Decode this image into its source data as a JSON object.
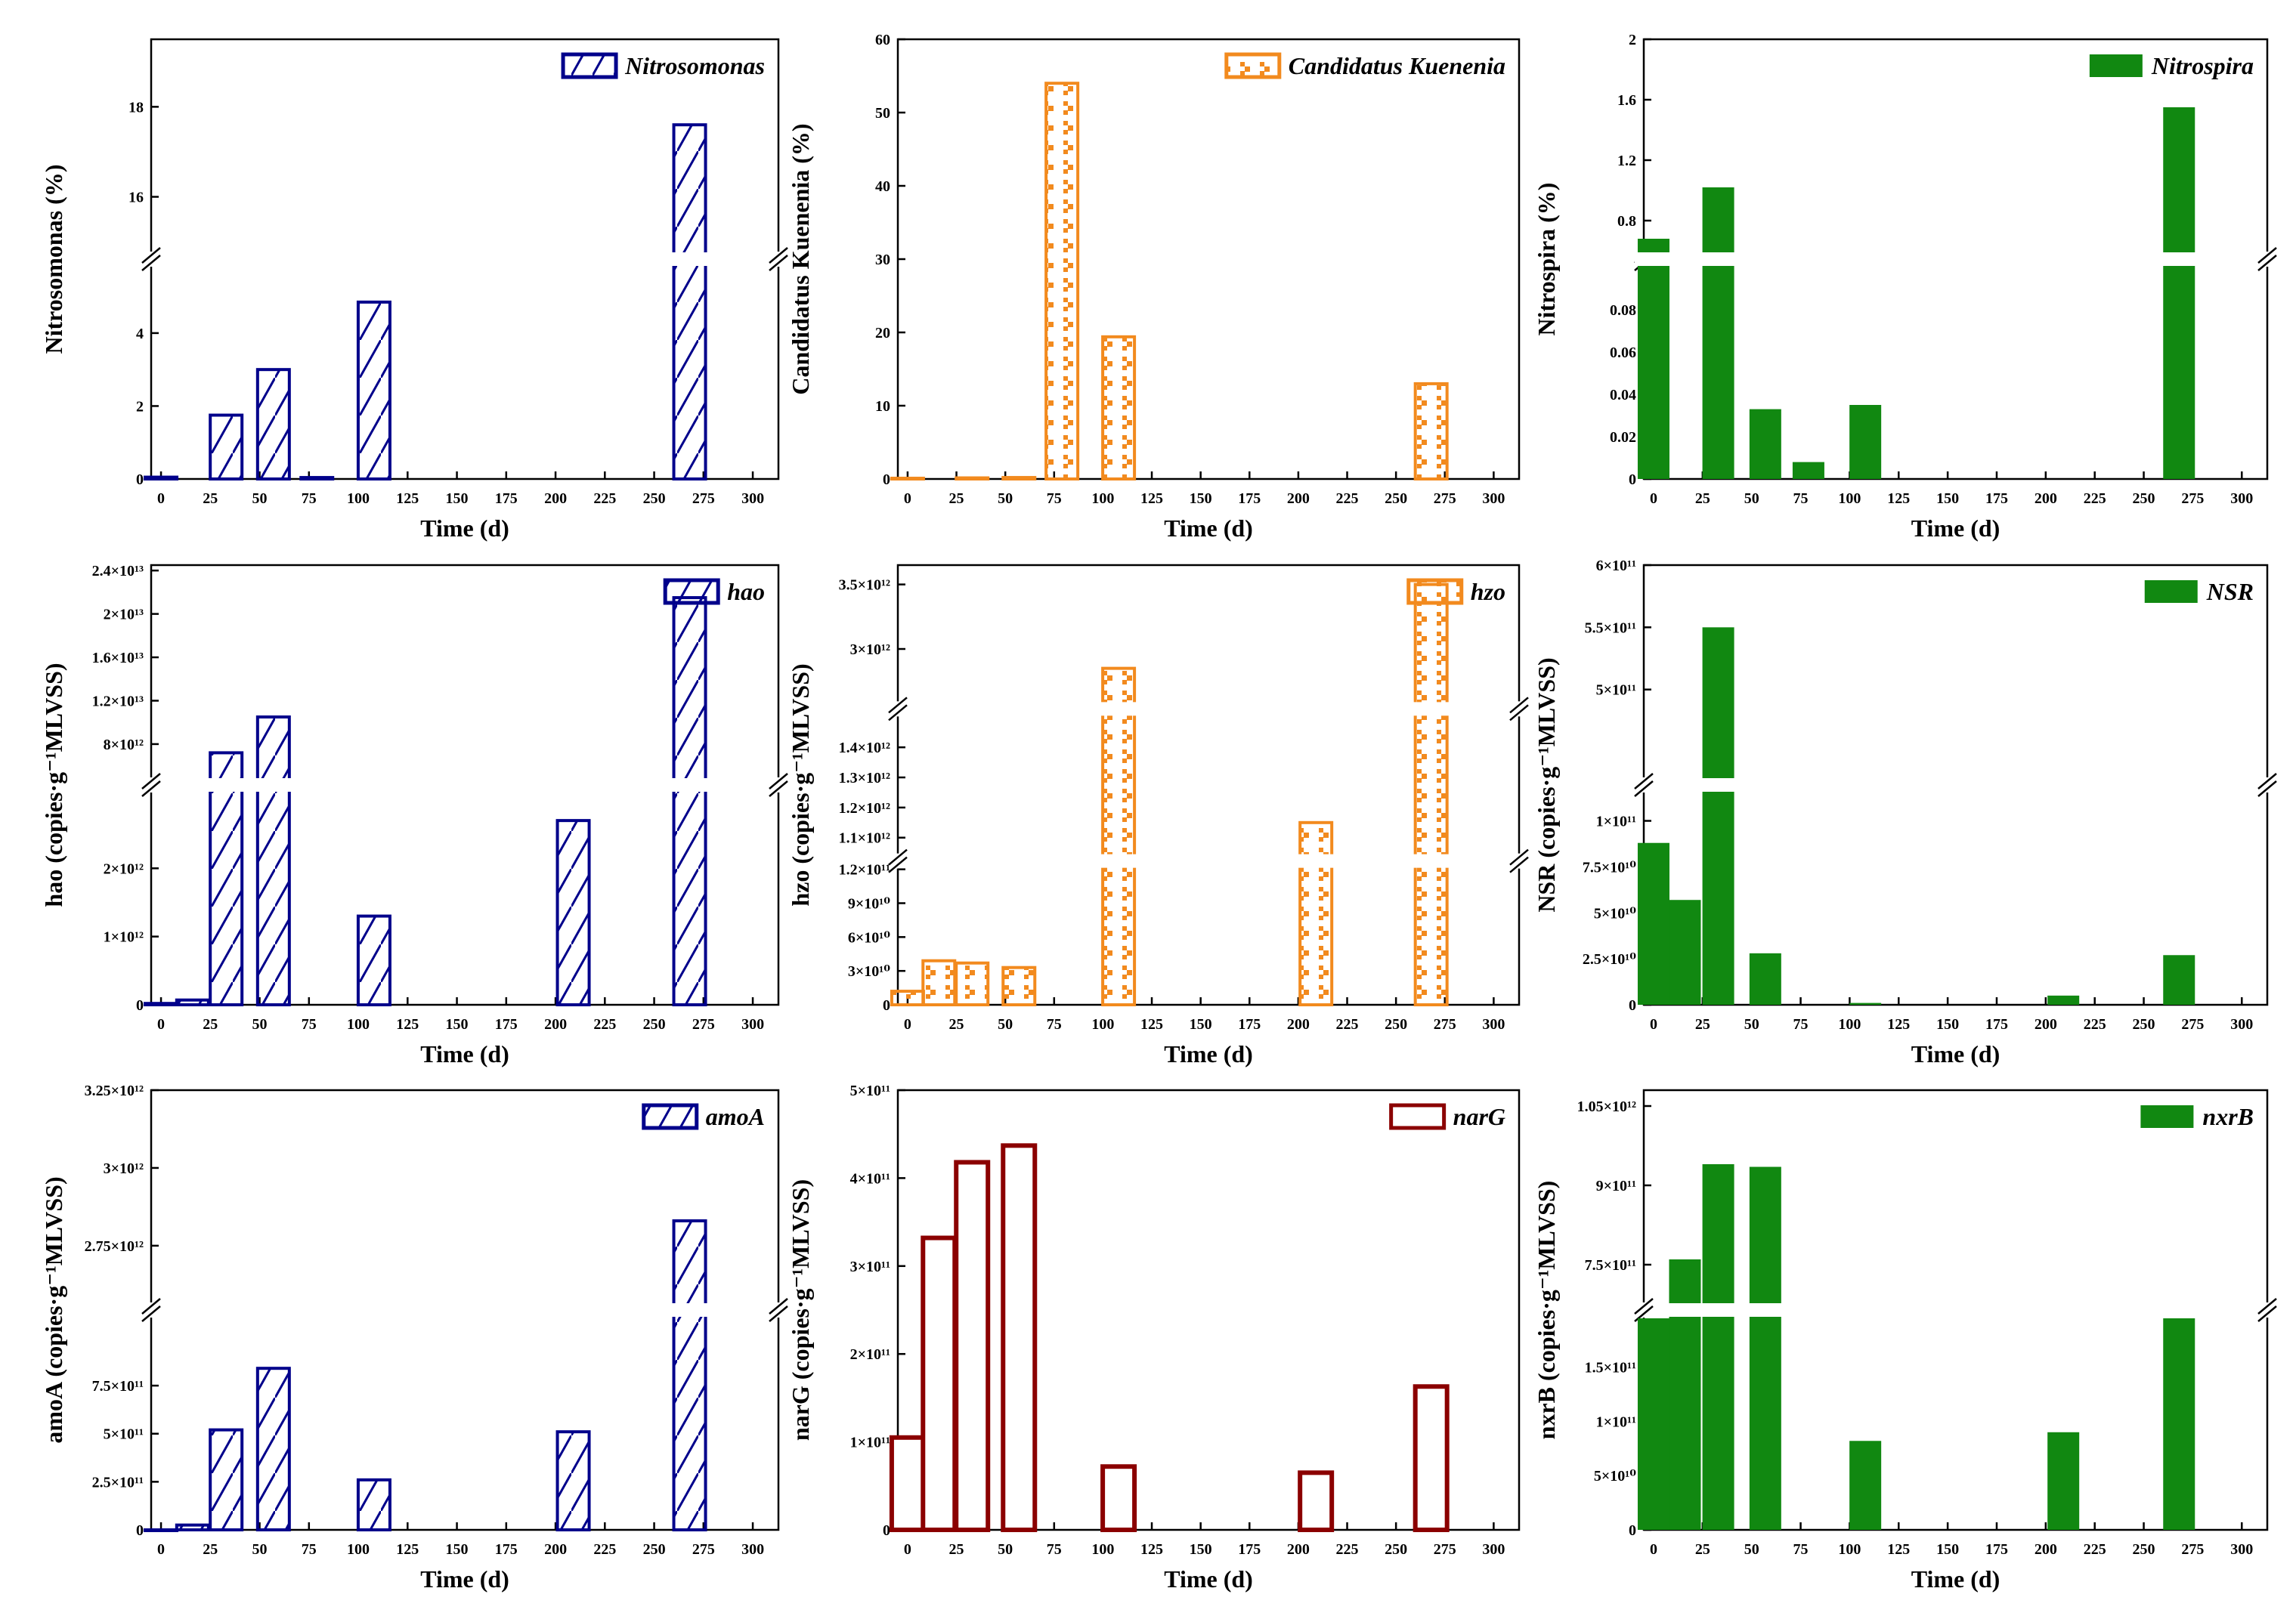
{
  "figure": {
    "xtitle": "Time (d)",
    "x_tick_labels": [
      "0",
      "25",
      "50",
      "75",
      "100",
      "125",
      "150",
      "175",
      "200",
      "225",
      "250",
      "275",
      "300"
    ]
  },
  "chart_data": [
    {
      "id": "nitrosomonas",
      "type": "bar",
      "title": "",
      "legend": "Nitrosomonas",
      "ylabel": "Nitrosomonas (%)",
      "color": "#00008B",
      "pattern": "hatch",
      "xlim": [
        -5,
        313
      ],
      "x": [
        0,
        33,
        57,
        79,
        108,
        268
      ],
      "values": [
        0.05,
        1.75,
        3.0,
        0.04,
        4.85,
        17.6
      ],
      "segments": [
        {
          "lim": [
            0,
            5.8
          ],
          "ticks": [
            0,
            2,
            4
          ],
          "labels": [
            "0",
            "2",
            "4"
          ]
        },
        {
          "lim": [
            14.8,
            19.5
          ],
          "ticks": [
            16,
            18
          ],
          "labels": [
            "16",
            "18"
          ]
        }
      ]
    },
    {
      "id": "kuenenia",
      "type": "bar",
      "title": "",
      "legend": "Candidatus Kuenenia",
      "ylabel": "Candidatus Kuenenia (%)",
      "color": "#F28A1E",
      "pattern": "dots",
      "xlim": [
        -5,
        313
      ],
      "x": [
        0,
        33,
        57,
        79,
        108,
        268
      ],
      "values": [
        0.1,
        0.15,
        0.2,
        54,
        19.4,
        13
      ],
      "segments": [
        {
          "lim": [
            0,
            60
          ],
          "ticks": [
            0,
            10,
            20,
            30,
            40,
            50,
            60
          ],
          "labels": [
            "0",
            "10",
            "20",
            "30",
            "40",
            "50",
            "60"
          ]
        }
      ]
    },
    {
      "id": "nitrospira",
      "type": "bar",
      "title": "",
      "legend": "Nitrospira",
      "ylabel": "Nitrospira (%)",
      "color": "#118811",
      "pattern": "solid",
      "xlim": [
        -5,
        313
      ],
      "x": [
        0,
        33,
        57,
        79,
        108,
        268
      ],
      "values": [
        0.68,
        1.02,
        0.033,
        0.008,
        0.035,
        1.55
      ],
      "segments": [
        {
          "lim": [
            0,
            0.1
          ],
          "ticks": [
            0,
            0.02,
            0.04,
            0.06,
            0.08
          ],
          "labels": [
            "0",
            "0.02",
            "0.04",
            "0.06",
            "0.08"
          ]
        },
        {
          "lim": [
            0.6,
            2.0
          ],
          "ticks": [
            0.8,
            1.2,
            1.6,
            2.0
          ],
          "labels": [
            "0.8",
            "1.2",
            "1.6",
            "2"
          ]
        }
      ]
    },
    {
      "id": "hao",
      "type": "bar",
      "title": "",
      "legend": "hao",
      "ylabel": "hao (copies·g⁻¹MLVSS)",
      "color": "#00008B",
      "pattern": "hatch",
      "xlim": [
        -5,
        313
      ],
      "x": [
        0,
        16,
        33,
        57,
        108,
        209,
        268
      ],
      "values": [
        20000000000.0,
        70000000000.0,
        7200000000000.0,
        10500000000000.0,
        1300000000000.0,
        2700000000000.0,
        21500000000000.0
      ],
      "segments": [
        {
          "lim": [
            0,
            3100000000000.0
          ],
          "ticks": [
            0,
            1000000000000.0,
            2000000000000.0
          ],
          "labels": [
            "0",
            "1×10¹²",
            "2×10¹²"
          ]
        },
        {
          "lim": [
            5000000000000.0,
            24500000000000.0
          ],
          "ticks": [
            8000000000000.0,
            12000000000000.0,
            16000000000000.0,
            20000000000000.0,
            24000000000000.0
          ],
          "labels": [
            "8×10¹²",
            "1.2×10¹³",
            "1.6×10¹³",
            "2×10¹³",
            "2.4×10¹³"
          ]
        }
      ]
    },
    {
      "id": "hzo",
      "type": "bar",
      "title": "",
      "legend": "hzo",
      "ylabel": "hzo (copies·g⁻¹MLVSS)",
      "color": "#F28A1E",
      "pattern": "dots",
      "xlim": [
        -5,
        313
      ],
      "x": [
        0,
        16,
        33,
        57,
        108,
        209,
        268
      ],
      "values": [
        12000000000.0,
        39000000000.0,
        37000000000.0,
        33000000000.0,
        2850000000000.0,
        1150000000000.0,
        3500000000000.0
      ],
      "segments": [
        {
          "lim": [
            0,
            120000000000.0
          ],
          "ticks": [
            0,
            30000000000.0,
            60000000000.0,
            90000000000.0,
            120000000000.0
          ],
          "labels": [
            "0",
            "3×10¹⁰",
            "6×10¹⁰",
            "9×10¹⁰",
            "1.2×10¹¹"
          ]
        },
        {
          "lim": [
            1050000000000.0,
            1500000000000.0
          ],
          "ticks": [
            1100000000000.0,
            1200000000000.0,
            1300000000000.0,
            1400000000000.0
          ],
          "labels": [
            "1.1×10¹²",
            "1.2×10¹²",
            "1.3×10¹²",
            "1.4×10¹²"
          ]
        },
        {
          "lim": [
            2600000000000.0,
            3650000000000.0
          ],
          "ticks": [
            3000000000000.0,
            3500000000000.0
          ],
          "labels": [
            "3×10¹²",
            "3.5×10¹²"
          ]
        }
      ]
    },
    {
      "id": "nsr",
      "type": "bar",
      "title": "",
      "legend": "NSR",
      "ylabel": "NSR (copies·g⁻¹MLVSS)",
      "color": "#118811",
      "pattern": "solid",
      "xlim": [
        -5,
        313
      ],
      "x": [
        0,
        16,
        33,
        57,
        108,
        209,
        268
      ],
      "values": [
        88000000000.0,
        57000000000.0,
        550000000000.0,
        28000000000.0,
        1000000000.0,
        5000000000.0,
        27000000000.0
      ],
      "segments": [
        {
          "lim": [
            0,
            115000000000.0
          ],
          "ticks": [
            0,
            25000000000.0,
            50000000000.0,
            75000000000.0,
            100000000000.0
          ],
          "labels": [
            "0",
            "2.5×10¹⁰",
            "5×10¹⁰",
            "7.5×10¹⁰",
            "1×10¹¹"
          ]
        },
        {
          "lim": [
            430000000000.0,
            600000000000.0
          ],
          "ticks": [
            500000000000.0,
            550000000000.0,
            600000000000.0
          ],
          "labels": [
            "5×10¹¹",
            "5.5×10¹¹",
            "6×10¹¹"
          ]
        }
      ]
    },
    {
      "id": "amoa",
      "type": "bar",
      "title": "",
      "legend": "amoA",
      "ylabel": "amoA (copies·g⁻¹MLVSS)",
      "color": "#00008B",
      "pattern": "hatch",
      "xlim": [
        -5,
        313
      ],
      "x": [
        0,
        16,
        33,
        57,
        108,
        209,
        268
      ],
      "values": [
        0,
        25000000000.0,
        520000000000.0,
        840000000000.0,
        260000000000.0,
        510000000000.0,
        2830000000000.0
      ],
      "segments": [
        {
          "lim": [
            0,
            1100000000000.0
          ],
          "ticks": [
            0,
            250000000000.0,
            500000000000.0,
            750000000000.0
          ],
          "labels": [
            "0",
            "2.5×10¹¹",
            "5×10¹¹",
            "7.5×10¹¹"
          ]
        },
        {
          "lim": [
            2570000000000.0,
            3250000000000.0
          ],
          "ticks": [
            2750000000000.0,
            3000000000000.0,
            3250000000000.0
          ],
          "labels": [
            "2.75×10¹²",
            "3×10¹²",
            "3.25×10¹²"
          ]
        }
      ]
    },
    {
      "id": "narg",
      "type": "bar",
      "title": "",
      "legend": "narG",
      "ylabel": "narG (copies·g⁻¹MLVSS)",
      "color": "#8B0000",
      "pattern": "outline",
      "xlim": [
        -5,
        313
      ],
      "x": [
        0,
        16,
        33,
        57,
        108,
        209,
        268
      ],
      "values": [
        105000000000.0,
        332000000000.0,
        418000000000.0,
        437000000000.0,
        72000000000.0,
        65000000000.0,
        163000000000.0
      ],
      "segments": [
        {
          "lim": [
            0,
            500000000000.0
          ],
          "ticks": [
            0,
            100000000000.0,
            200000000000.0,
            300000000000.0,
            400000000000.0,
            500000000000.0
          ],
          "labels": [
            "0",
            "1×10¹¹",
            "2×10¹¹",
            "3×10¹¹",
            "4×10¹¹",
            "5×10¹¹"
          ]
        }
      ]
    },
    {
      "id": "nxrb",
      "type": "bar",
      "title": "",
      "legend": "nxrB",
      "ylabel": "nxrB (copies·g⁻¹MLVSS)",
      "color": "#118811",
      "pattern": "solid",
      "xlim": [
        -5,
        313
      ],
      "x": [
        0,
        16,
        33,
        57,
        108,
        209,
        268
      ],
      "values": [
        195000000000.0,
        760000000000.0,
        940000000000.0,
        935000000000.0,
        82000000000.0,
        90000000000.0,
        195000000000.0
      ],
      "segments": [
        {
          "lim": [
            0,
            195000000000.0
          ],
          "ticks": [
            0,
            50000000000.0,
            100000000000.0,
            150000000000.0
          ],
          "labels": [
            "0",
            "5×10¹⁰",
            "1×10¹¹",
            "1.5×10¹¹"
          ]
        },
        {
          "lim": [
            680000000000.0,
            1080000000000.0
          ],
          "ticks": [
            750000000000.0,
            900000000000.0,
            1050000000000.0
          ],
          "labels": [
            "7.5×10¹¹",
            "9×10¹¹",
            "1.05×10¹²"
          ]
        }
      ]
    }
  ]
}
